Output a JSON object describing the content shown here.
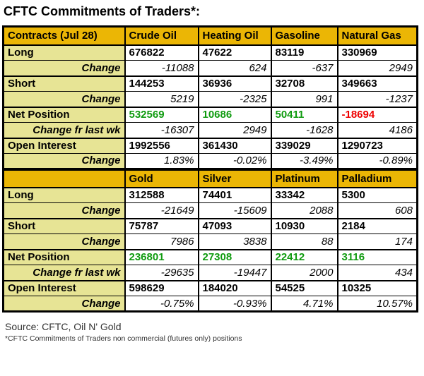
{
  "title": "CFTC Commitments of Traders*:",
  "colors": {
    "header_bg": "#EBB605",
    "label_bg": "#E7E495",
    "positive": "#0F9B0F",
    "negative": "#EE0000",
    "border": "#000000"
  },
  "sections": [
    {
      "columns": [
        "Contracts (Jul 28)",
        "Crude Oil",
        "Heating Oil",
        "Gasoline",
        "Natural Gas"
      ],
      "rows": [
        {
          "label": "Long",
          "type": "value",
          "values": [
            "676822",
            "47622",
            "83119",
            "330969"
          ]
        },
        {
          "label": "Change",
          "type": "change",
          "values": [
            "-11088",
            "624",
            "-637",
            "2949"
          ]
        },
        {
          "label": "Short",
          "type": "value",
          "values": [
            "144253",
            "36936",
            "32708",
            "349663"
          ]
        },
        {
          "label": "Change",
          "type": "change",
          "values": [
            "5219",
            "-2325",
            "991",
            "-1237"
          ]
        },
        {
          "label": "Net Position",
          "type": "net",
          "values": [
            "532569",
            "10686",
            "50411",
            "-18694"
          ]
        },
        {
          "label": "Change fr last wk",
          "type": "change",
          "values": [
            "-16307",
            "2949",
            "-1628",
            "4186"
          ]
        },
        {
          "label": "Open Interest",
          "type": "value",
          "values": [
            "1992556",
            "361430",
            "339029",
            "1290723"
          ]
        },
        {
          "label": "Change",
          "type": "change",
          "values": [
            "1.83%",
            "-0.02%",
            "-3.49%",
            "-0.89%"
          ]
        }
      ]
    },
    {
      "columns": [
        "",
        "Gold",
        "Silver",
        "Platinum",
        "Palladium"
      ],
      "rows": [
        {
          "label": "Long",
          "type": "value",
          "values": [
            "312588",
            "74401",
            "33342",
            "5300"
          ]
        },
        {
          "label": "Change",
          "type": "change",
          "values": [
            "-21649",
            "-15609",
            "2088",
            "608"
          ]
        },
        {
          "label": "Short",
          "type": "value",
          "values": [
            "75787",
            "47093",
            "10930",
            "2184"
          ]
        },
        {
          "label": "Change",
          "type": "change",
          "values": [
            "7986",
            "3838",
            "88",
            "174"
          ]
        },
        {
          "label": "Net Position",
          "type": "net",
          "values": [
            "236801",
            "27308",
            "22412",
            "3116"
          ]
        },
        {
          "label": "Change fr last wk",
          "type": "change",
          "values": [
            "-29635",
            "-19447",
            "2000",
            "434"
          ]
        },
        {
          "label": "Open Interest",
          "type": "value",
          "values": [
            "598629",
            "184020",
            "54525",
            "10325"
          ]
        },
        {
          "label": "Change",
          "type": "change",
          "values": [
            "-0.75%",
            "-0.93%",
            "4.71%",
            "10.57%"
          ]
        }
      ]
    }
  ],
  "footer": {
    "source": "Source: CFTC, Oil N' Gold",
    "footnote": "*CFTC Commitments of Traders non commercial (futures only) positions"
  }
}
